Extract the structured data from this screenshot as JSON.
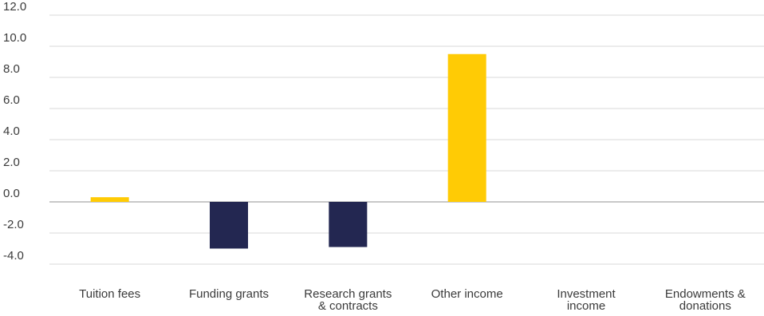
{
  "chart_data": {
    "type": "bar",
    "categories": [
      "Tuition fees",
      "Funding grants",
      "Research grants & contracts",
      "Other income",
      "Investment income",
      "Endowments & donations"
    ],
    "category_lines": [
      [
        "Tuition fees"
      ],
      [
        "Funding grants"
      ],
      [
        "Research grants",
        "& contracts"
      ],
      [
        "Other income"
      ],
      [
        "Investment",
        "income"
      ],
      [
        "Endowments &",
        "donations"
      ]
    ],
    "values": [
      0.3,
      -3.0,
      -2.9,
      9.5,
      0.0,
      0.0
    ],
    "ylim": [
      -4.0,
      12.0
    ],
    "yticks": [
      "12.0",
      "10.0",
      "8.0",
      "6.0",
      "4.0",
      "2.0",
      "0.0",
      "-2.0",
      "-4.0"
    ],
    "ytick_values": [
      12,
      10,
      8,
      6,
      4,
      2,
      0,
      -2,
      -4
    ],
    "grid": true,
    "colors": {
      "positive": "#FFCB05",
      "negative": "#232751",
      "grid": "#D9D9D9",
      "zero_line": "#A6A6A6"
    }
  }
}
